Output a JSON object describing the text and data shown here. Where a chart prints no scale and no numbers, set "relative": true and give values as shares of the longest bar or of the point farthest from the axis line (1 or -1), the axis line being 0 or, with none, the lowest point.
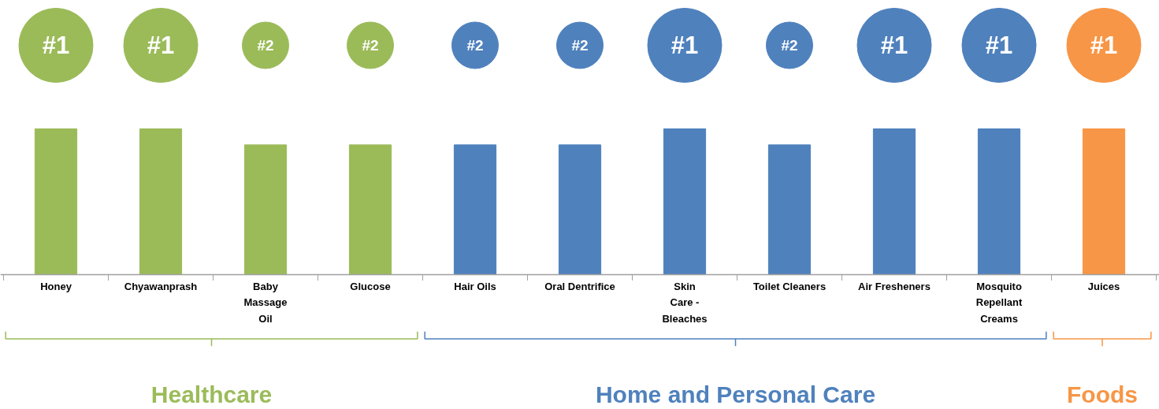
{
  "chart_data": {
    "type": "bar",
    "relative": true,
    "categories": [
      "Honey",
      "Chyawanprash",
      "Baby Massage Oil",
      "Glucose",
      "Hair Oils",
      "Oral Dentrifice",
      "Skin Care - Bleaches",
      "Toilet Cleaners",
      "Air Fresheners",
      "Mosquito Repellant Creams",
      "Juices"
    ],
    "values": [
      1,
      1,
      0.89,
      0.89,
      0.89,
      0.89,
      1,
      0.89,
      1,
      1,
      1
    ],
    "colors": [
      "#9bbb59",
      "#9bbb59",
      "#9bbb59",
      "#9bbb59",
      "#4f81bd",
      "#4f81bd",
      "#4f81bd",
      "#4f81bd",
      "#4f81bd",
      "#4f81bd",
      "#f79646"
    ],
    "annotations": [
      "#1",
      "#1",
      "#2",
      "#2",
      "#2",
      "#2",
      "#1",
      "#2",
      "#1",
      "#1",
      "#1",
      "Healthcare",
      "Home and Personal Care",
      "Foods"
    ]
  }
}
